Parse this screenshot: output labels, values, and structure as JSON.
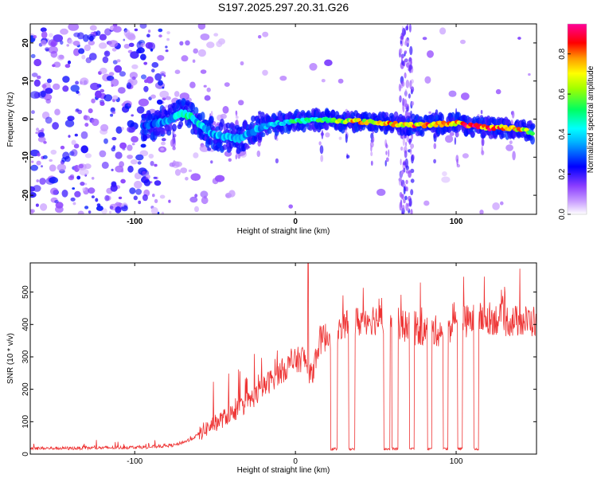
{
  "chart_data": [
    {
      "type": "heatmap",
      "title": "S197.2025.297.20.31.G26",
      "xlabel": "Height of straight line (km)",
      "ylabel": "Frequency (Hz)",
      "xlim": [
        -165,
        150
      ],
      "ylim": [
        -25,
        25
      ],
      "xticks": [
        -100,
        0,
        100
      ],
      "yticks": [
        -20,
        -10,
        0,
        10,
        20
      ],
      "colorbar": {
        "label": "Normalized spectral amplitude",
        "range": [
          0.0,
          0.95
        ],
        "ticks": [
          "0.0",
          "0.2",
          "0.4",
          "0.6",
          "0.8"
        ],
        "colors": [
          "#ffffff",
          "#9a4dff",
          "#0000ff",
          "#00ffff",
          "#00ff00",
          "#ffff00",
          "#ff8800",
          "#ff0000",
          "#ff00ff"
        ]
      },
      "ridge": {
        "x": [
          -95,
          -85,
          -75,
          -70,
          -65,
          -60,
          -55,
          -50,
          -45,
          -40,
          -35,
          -30,
          -20,
          -10,
          0,
          10,
          20,
          30,
          40,
          50,
          60,
          70,
          80,
          90,
          100,
          110,
          120,
          130,
          140,
          148
        ],
        "y": [
          -2,
          -1,
          0.5,
          1.5,
          0.5,
          -1,
          -3,
          -4,
          -4.5,
          -5,
          -5,
          -4,
          -2,
          -1,
          -0.5,
          -0.3,
          -0.2,
          -0.4,
          -0.6,
          -0.9,
          -1.2,
          -1.5,
          -1.6,
          -1.3,
          -1.0,
          -1.8,
          -2.3,
          -2.2,
          -2.7,
          -3.5
        ],
        "amplitude": [
          0.3,
          0.35,
          0.45,
          0.55,
          0.5,
          0.45,
          0.4,
          0.4,
          0.42,
          0.45,
          0.45,
          0.4,
          0.4,
          0.45,
          0.55,
          0.55,
          0.6,
          0.75,
          0.8,
          0.8,
          0.85,
          0.85,
          0.9,
          0.8,
          0.85,
          0.95,
          0.95,
          0.9,
          0.8,
          0.6
        ]
      },
      "stripes_x": [
        -76,
        -53,
        -36,
        -22,
        -12,
        16,
        32,
        48,
        57,
        66,
        68,
        70,
        72,
        87,
        100,
        116,
        135
      ]
    },
    {
      "type": "line",
      "xlabel": "Height of straight line (km)",
      "ylabel": "SNR (10 * v/v)",
      "xlim": [
        -165,
        150
      ],
      "ylim": [
        0,
        590
      ],
      "xticks": [
        -100,
        0,
        100
      ],
      "yticks": [
        0,
        100,
        200,
        300,
        400,
        500
      ],
      "color": "#ee3333",
      "trend": {
        "x": [
          -165,
          -140,
          -110,
          -90,
          -75,
          -65,
          -55,
          -45,
          -35,
          -25,
          -15,
          -5,
          5,
          10,
          15,
          25,
          35,
          45,
          60,
          75,
          90,
          105,
          120,
          135,
          150
        ],
        "y": [
          18,
          18,
          20,
          22,
          28,
          45,
          80,
          110,
          140,
          180,
          230,
          270,
          300,
          240,
          350,
          380,
          400,
          420,
          410,
          380,
          380,
          410,
          420,
          410,
          410
        ]
      },
      "dropouts": [
        {
          "x0": 22,
          "x1": 26,
          "level": 15
        },
        {
          "x0": 33,
          "x1": 37,
          "level": 15
        },
        {
          "x0": 55,
          "x1": 59,
          "level": 15
        },
        {
          "x0": 60,
          "x1": 64,
          "level": 15
        },
        {
          "x0": 71,
          "x1": 74,
          "level": 15
        },
        {
          "x0": 82,
          "x1": 85,
          "level": 15
        },
        {
          "x0": 92,
          "x1": 95,
          "level": 15
        },
        {
          "x0": 101,
          "x1": 104,
          "level": 15
        },
        {
          "x0": 111,
          "x1": 114,
          "level": 15
        }
      ],
      "peak": {
        "x": 8,
        "y": 590
      }
    }
  ]
}
